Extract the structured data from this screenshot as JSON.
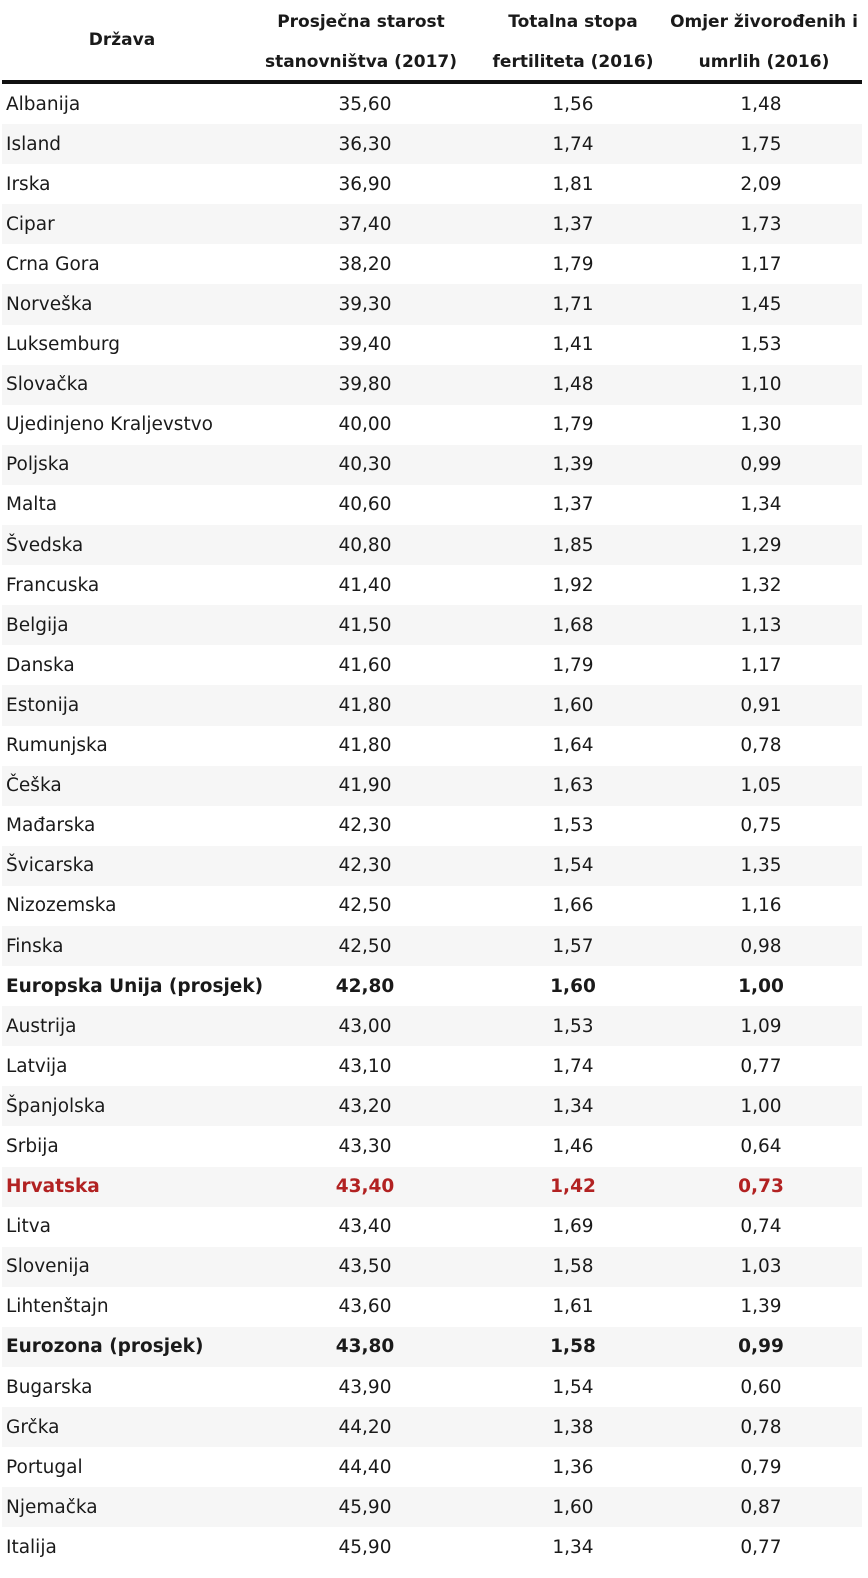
{
  "colors": {
    "highlight": "#b22222",
    "stripe": "#f6f6f6",
    "rule": "#111111"
  },
  "table": {
    "headers": {
      "country": "Država",
      "age_line1": "Prosječna starost",
      "age_line2": "stanovništva (2017)",
      "fert_line1": "Totalna stopa",
      "fert_line2": "fertiliteta (2016)",
      "ratio_line1": "Omjer živorođenih i",
      "ratio_line2": "umrlih (2016)"
    },
    "rows": [
      {
        "country": "Albanija",
        "age": "35,60",
        "fert": "1,56",
        "ratio": "1,48",
        "style": ""
      },
      {
        "country": "Island",
        "age": "36,30",
        "fert": "1,74",
        "ratio": "1,75",
        "style": ""
      },
      {
        "country": "Irska",
        "age": "36,90",
        "fert": "1,81",
        "ratio": "2,09",
        "style": ""
      },
      {
        "country": "Cipar",
        "age": "37,40",
        "fert": "1,37",
        "ratio": "1,73",
        "style": ""
      },
      {
        "country": "Crna Gora",
        "age": "38,20",
        "fert": "1,79",
        "ratio": "1,17",
        "style": ""
      },
      {
        "country": "Norveška",
        "age": "39,30",
        "fert": "1,71",
        "ratio": "1,45",
        "style": ""
      },
      {
        "country": "Luksemburg",
        "age": "39,40",
        "fert": "1,41",
        "ratio": "1,53",
        "style": ""
      },
      {
        "country": "Slovačka",
        "age": "39,80",
        "fert": "1,48",
        "ratio": "1,10",
        "style": ""
      },
      {
        "country": "Ujedinjeno Kraljevstvo",
        "age": "40,00",
        "fert": "1,79",
        "ratio": "1,30",
        "style": ""
      },
      {
        "country": "Poljska",
        "age": "40,30",
        "fert": "1,39",
        "ratio": "0,99",
        "style": ""
      },
      {
        "country": "Malta",
        "age": "40,60",
        "fert": "1,37",
        "ratio": "1,34",
        "style": ""
      },
      {
        "country": "Švedska",
        "age": "40,80",
        "fert": "1,85",
        "ratio": "1,29",
        "style": ""
      },
      {
        "country": "Francuska",
        "age": "41,40",
        "fert": "1,92",
        "ratio": "1,32",
        "style": ""
      },
      {
        "country": "Belgija",
        "age": "41,50",
        "fert": "1,68",
        "ratio": "1,13",
        "style": ""
      },
      {
        "country": "Danska",
        "age": "41,60",
        "fert": "1,79",
        "ratio": "1,17",
        "style": ""
      },
      {
        "country": "Estonija",
        "age": "41,80",
        "fert": "1,60",
        "ratio": "0,91",
        "style": ""
      },
      {
        "country": "Rumunjska",
        "age": "41,80",
        "fert": "1,64",
        "ratio": "0,78",
        "style": ""
      },
      {
        "country": "Češka",
        "age": "41,90",
        "fert": "1,63",
        "ratio": "1,05",
        "style": ""
      },
      {
        "country": "Mađarska",
        "age": "42,30",
        "fert": "1,53",
        "ratio": "0,75",
        "style": ""
      },
      {
        "country": "Švicarska",
        "age": "42,30",
        "fert": "1,54",
        "ratio": "1,35",
        "style": ""
      },
      {
        "country": "Nizozemska",
        "age": "42,50",
        "fert": "1,66",
        "ratio": "1,16",
        "style": ""
      },
      {
        "country": "Finska",
        "age": "42,50",
        "fert": "1,57",
        "ratio": "0,98",
        "style": ""
      },
      {
        "country": "Europska Unija (prosjek)",
        "age": "42,80",
        "fert": "1,60",
        "ratio": "1,00",
        "style": "bold"
      },
      {
        "country": "Austrija",
        "age": "43,00",
        "fert": "1,53",
        "ratio": "1,09",
        "style": ""
      },
      {
        "country": "Latvija",
        "age": "43,10",
        "fert": "1,74",
        "ratio": "0,77",
        "style": ""
      },
      {
        "country": "Španjolska",
        "age": "43,20",
        "fert": "1,34",
        "ratio": "1,00",
        "style": ""
      },
      {
        "country": "Srbija",
        "age": "43,30",
        "fert": "1,46",
        "ratio": "0,64",
        "style": ""
      },
      {
        "country": "Hrvatska",
        "age": "43,40",
        "fert": "1,42",
        "ratio": "0,73",
        "style": "highlight"
      },
      {
        "country": "Litva",
        "age": "43,40",
        "fert": "1,69",
        "ratio": "0,74",
        "style": ""
      },
      {
        "country": "Slovenija",
        "age": "43,50",
        "fert": "1,58",
        "ratio": "1,03",
        "style": ""
      },
      {
        "country": "Lihtenštajn",
        "age": "43,60",
        "fert": "1,61",
        "ratio": "1,39",
        "style": ""
      },
      {
        "country": "Eurozona (prosjek)",
        "age": "43,80",
        "fert": "1,58",
        "ratio": "0,99",
        "style": "bold"
      },
      {
        "country": "Bugarska",
        "age": "43,90",
        "fert": "1,54",
        "ratio": "0,60",
        "style": ""
      },
      {
        "country": "Grčka",
        "age": "44,20",
        "fert": "1,38",
        "ratio": "0,78",
        "style": ""
      },
      {
        "country": "Portugal",
        "age": "44,40",
        "fert": "1,36",
        "ratio": "0,79",
        "style": ""
      },
      {
        "country": "Njemačka",
        "age": "45,90",
        "fert": "1,60",
        "ratio": "0,87",
        "style": ""
      },
      {
        "country": "Italija",
        "age": "45,90",
        "fert": "1,34",
        "ratio": "0,77",
        "style": ""
      }
    ]
  }
}
